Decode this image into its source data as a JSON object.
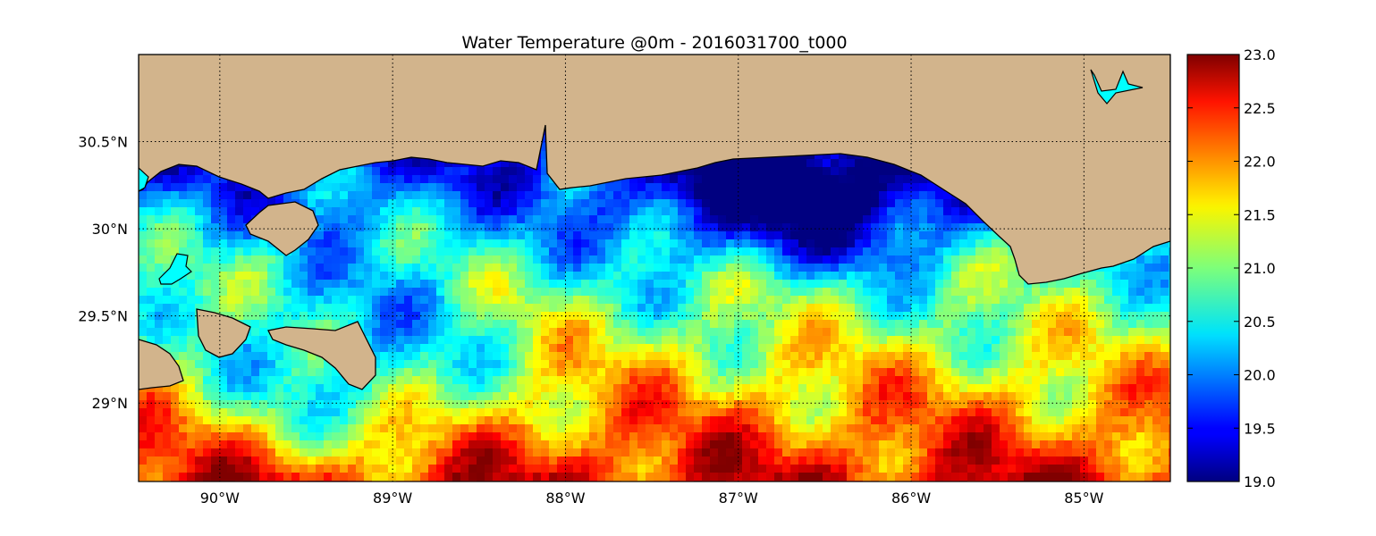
{
  "title": "Water Temperature @0m - 2016031700_t000",
  "map": {
    "lon_range": [
      -90.47,
      -84.5
    ],
    "lat_range": [
      28.55,
      31.0
    ],
    "land_color": "#d2b48c",
    "coast_color": "#000000",
    "grid": "dotted",
    "x_ticks": [
      {
        "value": -90,
        "label": "90°W"
      },
      {
        "value": -89,
        "label": "89°W"
      },
      {
        "value": -88,
        "label": "88°W"
      },
      {
        "value": -87,
        "label": "87°W"
      },
      {
        "value": -86,
        "label": "86°W"
      },
      {
        "value": -85,
        "label": "85°W"
      }
    ],
    "y_ticks": [
      {
        "value": 30.5,
        "label": "30.5°N"
      },
      {
        "value": 30.0,
        "label": "30°N"
      },
      {
        "value": 29.5,
        "label": "29.5°N"
      },
      {
        "value": 29.0,
        "label": "29°N"
      }
    ]
  },
  "colorbar": {
    "colormap": "jet",
    "min": 19.0,
    "max": 23.0,
    "ticks": [
      "19.0",
      "19.5",
      "20.0",
      "20.5",
      "21.0",
      "21.5",
      "22.0",
      "22.5",
      "23.0"
    ]
  }
}
